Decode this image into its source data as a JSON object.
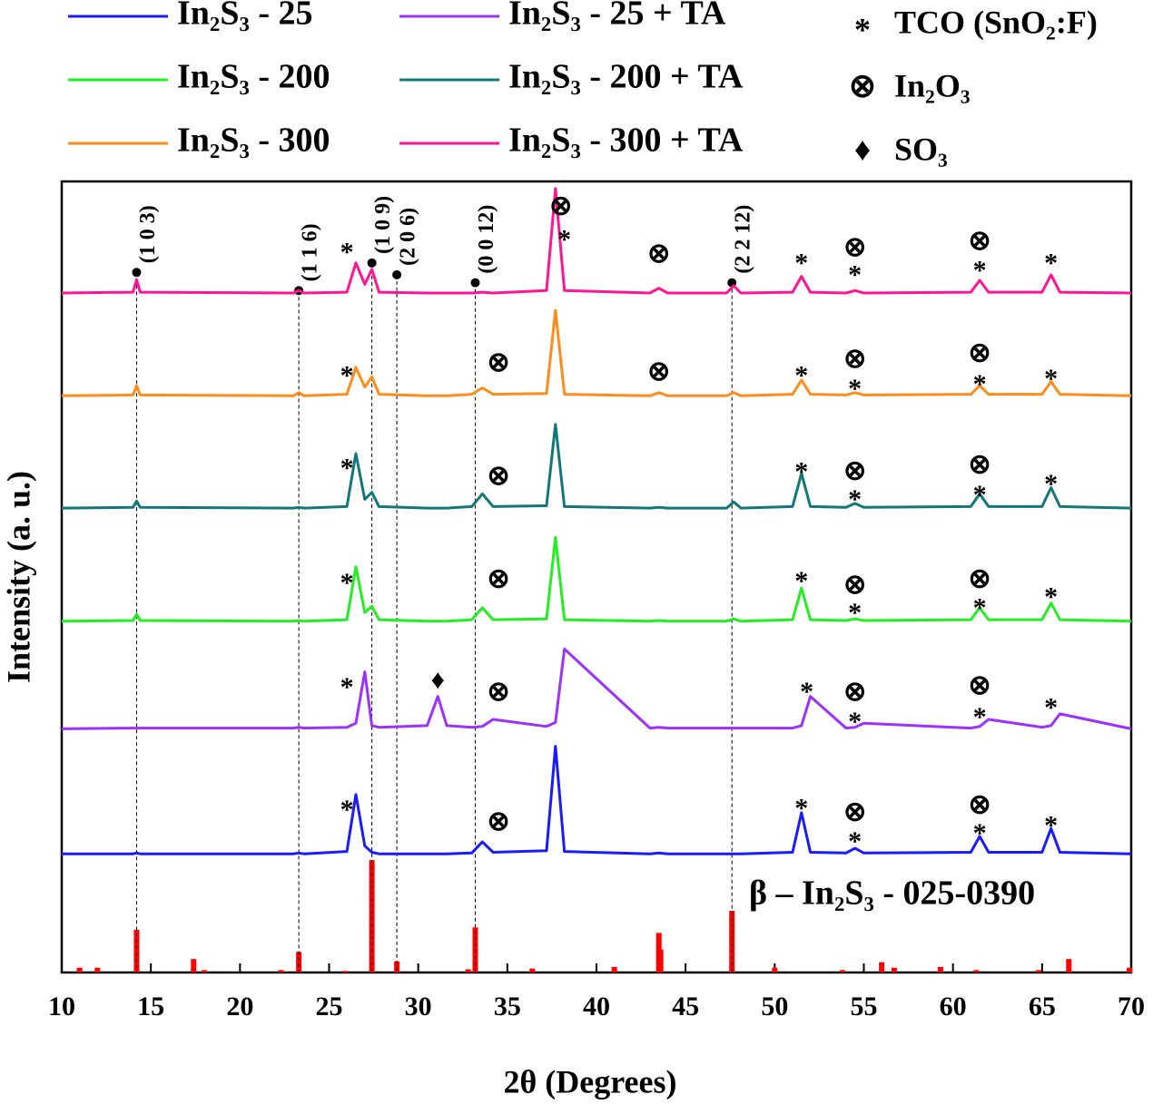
{
  "chart_data": {
    "type": "line",
    "x_label": "2θ (Degrees)",
    "y_label": "Intensity (a. u.)",
    "xlim": [
      10,
      70
    ],
    "ylim": [
      0,
      100
    ],
    "xticks": [
      10,
      15,
      20,
      25,
      30,
      35,
      40,
      45,
      50,
      55,
      60,
      65,
      70
    ],
    "x": [
      10,
      14.0,
      14.2,
      14.4,
      23.0,
      23.3,
      23.6,
      26.0,
      26.5,
      27.0,
      27.4,
      27.8,
      30.5,
      31.1,
      31.6,
      33.0,
      33.6,
      34.2,
      37.2,
      37.7,
      38.2,
      43.0,
      43.5,
      44.0,
      47.3,
      47.7,
      48.1,
      51.0,
      51.5,
      52.0,
      54.0,
      54.5,
      55.0,
      61.0,
      61.5,
      62.0,
      65.0,
      65.5,
      66.0,
      70
    ],
    "series": [
      {
        "name": "In₂S₃ - 25",
        "color": "#1a1aff",
        "values": [
          15.0,
          15.0,
          15.1,
          15.0,
          15.0,
          15.1,
          15.0,
          15.3,
          22.5,
          16.0,
          15.2,
          15.0,
          15.0,
          15.0,
          15.0,
          15.1,
          16.5,
          15.2,
          15.4,
          28.6,
          15.3,
          15.0,
          15.1,
          15.0,
          15.0,
          15.0,
          15.0,
          15.2,
          20.2,
          15.2,
          15.1,
          15.7,
          15.1,
          15.2,
          17.2,
          15.2,
          15.2,
          18.2,
          15.2,
          15.0
        ]
      },
      {
        "name": "In₂S₃ - 200",
        "color": "#22ee22",
        "values": [
          44.4,
          44.5,
          45.3,
          44.5,
          44.4,
          44.5,
          44.4,
          44.6,
          51.3,
          45.5,
          46.3,
          44.6,
          44.4,
          44.4,
          44.4,
          44.6,
          46.1,
          44.6,
          44.7,
          55.0,
          44.6,
          44.4,
          44.5,
          44.4,
          44.4,
          44.7,
          44.4,
          44.6,
          48.6,
          44.6,
          44.5,
          44.7,
          44.5,
          44.6,
          46.1,
          44.6,
          44.6,
          46.7,
          44.6,
          44.4
        ]
      },
      {
        "name": "In₂S₃ - 300",
        "color": "#ff8c1a",
        "values": [
          72.9,
          73.0,
          74.2,
          73.0,
          72.9,
          73.3,
          72.9,
          73.1,
          76.5,
          74.0,
          75.3,
          73.1,
          72.9,
          72.9,
          72.9,
          73.1,
          73.9,
          73.1,
          73.2,
          83.7,
          73.1,
          72.9,
          73.3,
          72.9,
          72.9,
          73.3,
          72.9,
          73.1,
          74.9,
          73.1,
          73.0,
          73.3,
          73.0,
          73.1,
          74.2,
          73.1,
          73.1,
          74.7,
          73.1,
          72.9
        ]
      },
      {
        "name": "In₂S₃ - 25 + TA",
        "color": "#9b30ff",
        "values": [
          30.8,
          30.9,
          30.9,
          30.9,
          30.9,
          31.0,
          30.9,
          31.0,
          31.5,
          38.0,
          31.2,
          31.0,
          31.2,
          34.9,
          31.2,
          31.0,
          31.1,
          32.0,
          31.1,
          31.6,
          40.9,
          30.9,
          31.0,
          30.9,
          30.9,
          30.9,
          30.9,
          30.9,
          31.2,
          34.9,
          30.9,
          31.0,
          31.5,
          30.9,
          31.1,
          32.0,
          31.0,
          31.2,
          32.7,
          30.8
        ]
      },
      {
        "name": "In₂S₃ - 200 + TA",
        "color": "#11777a",
        "values": [
          58.7,
          58.8,
          59.6,
          58.8,
          58.7,
          58.8,
          58.7,
          58.9,
          65.6,
          59.8,
          60.7,
          58.9,
          58.7,
          58.7,
          58.7,
          58.9,
          60.5,
          58.9,
          59.0,
          69.3,
          58.9,
          58.7,
          58.8,
          58.7,
          58.7,
          59.5,
          58.7,
          58.9,
          63.1,
          58.9,
          58.8,
          59.3,
          58.8,
          58.9,
          60.5,
          58.9,
          58.9,
          61.3,
          58.9,
          58.7
        ]
      },
      {
        "name": "In₂S₃ - 300 + TA",
        "color": "#ff1493",
        "values": [
          85.9,
          86.0,
          87.6,
          86.0,
          85.9,
          86.2,
          85.9,
          86.0,
          89.7,
          87.0,
          88.9,
          86.0,
          85.9,
          85.9,
          85.9,
          85.9,
          86.0,
          85.9,
          86.2,
          99.1,
          86.2,
          85.9,
          86.5,
          85.9,
          85.9,
          86.8,
          85.9,
          86.0,
          88.0,
          86.0,
          85.9,
          86.2,
          85.9,
          86.0,
          87.5,
          86.0,
          86.0,
          88.2,
          86.0,
          85.9
        ]
      }
    ],
    "reference": {
      "name": "β – In₂S₃ - 025-0390",
      "color": "#ff0000",
      "x": [
        11.0,
        12.0,
        14.2,
        17.4,
        18.0,
        22.3,
        23.3,
        25.9,
        27.4,
        28.8,
        32.8,
        33.2,
        36.4,
        41.0,
        43.5,
        43.6,
        47.6,
        50.0,
        53.8,
        56.0,
        56.7,
        59.3,
        61.3,
        64.8,
        66.5,
        69.9
      ],
      "values": [
        0.6,
        0.6,
        5.4,
        1.7,
        0.3,
        0.3,
        2.6,
        0.2,
        14.2,
        1.4,
        0.4,
        5.7,
        0.5,
        0.7,
        5.0,
        2.9,
        7.8,
        0.6,
        0.3,
        1.3,
        0.6,
        0.7,
        0.3,
        0.3,
        1.7,
        0.6
      ]
    },
    "reflections": [
      {
        "label": "(1 0 3)",
        "x": 14.2,
        "y": 88.5
      },
      {
        "label": "(1 1 6)",
        "x": 23.3,
        "y": 86.2
      },
      {
        "label": "(1 0 9)",
        "x": 27.4,
        "y": 89.7
      },
      {
        "label": "(2 0 6)",
        "x": 28.8,
        "y": 88.2
      },
      {
        "label": "(0 0 12)",
        "x": 33.2,
        "y": 87.2
      },
      {
        "label": "(2 2 12)",
        "x": 47.6,
        "y": 87.2
      }
    ],
    "marker_legend": [
      {
        "symbol": "*",
        "label": "TCO (SnO₂:F)"
      },
      {
        "symbol": "⊗",
        "label": "In₂O₃"
      },
      {
        "symbol": "♦",
        "label": "SO₃"
      }
    ],
    "annotations": [
      {
        "text": "*",
        "x": 26.0,
        "y": 91.7
      },
      {
        "text": "⊗",
        "x": 38.0,
        "y": 96.6
      },
      {
        "text": "*",
        "x": 38.2,
        "y": 93.3
      },
      {
        "text": "⊗",
        "x": 43.5,
        "y": 90.6
      },
      {
        "text": "*",
        "x": 51.5,
        "y": 90.3
      },
      {
        "text": "⊗",
        "x": 54.5,
        "y": 91.4
      },
      {
        "text": "*",
        "x": 54.5,
        "y": 88.8
      },
      {
        "text": "⊗",
        "x": 61.5,
        "y": 92.2
      },
      {
        "text": "*",
        "x": 61.5,
        "y": 89.4
      },
      {
        "text": "*",
        "x": 65.5,
        "y": 90.3
      },
      {
        "text": "*",
        "x": 26.0,
        "y": 76.1
      },
      {
        "text": "⊗",
        "x": 34.5,
        "y": 76.8
      },
      {
        "text": "⊗",
        "x": 43.5,
        "y": 75.7
      },
      {
        "text": "*",
        "x": 51.5,
        "y": 76.1
      },
      {
        "text": "⊗",
        "x": 54.5,
        "y": 77.3
      },
      {
        "text": "*",
        "x": 54.5,
        "y": 74.4
      },
      {
        "text": "⊗",
        "x": 61.5,
        "y": 78.0
      },
      {
        "text": "*",
        "x": 61.5,
        "y": 75.0
      },
      {
        "text": "*",
        "x": 65.5,
        "y": 75.7
      },
      {
        "text": "*",
        "x": 26.0,
        "y": 64.4
      },
      {
        "text": "⊗",
        "x": 34.5,
        "y": 62.5
      },
      {
        "text": "*",
        "x": 51.5,
        "y": 63.9
      },
      {
        "text": "⊗",
        "x": 54.5,
        "y": 63.1
      },
      {
        "text": "*",
        "x": 54.5,
        "y": 60.4
      },
      {
        "text": "⊗",
        "x": 61.5,
        "y": 63.9
      },
      {
        "text": "*",
        "x": 61.5,
        "y": 61.0
      },
      {
        "text": "*",
        "x": 65.5,
        "y": 62.4
      },
      {
        "text": "*",
        "x": 26.0,
        "y": 49.9
      },
      {
        "text": "⊗",
        "x": 34.5,
        "y": 49.5
      },
      {
        "text": "*",
        "x": 51.5,
        "y": 50.1
      },
      {
        "text": "⊗",
        "x": 54.5,
        "y": 48.7
      },
      {
        "text": "*",
        "x": 54.5,
        "y": 46.1
      },
      {
        "text": "⊗",
        "x": 61.5,
        "y": 49.5
      },
      {
        "text": "*",
        "x": 61.5,
        "y": 46.7
      },
      {
        "text": "*",
        "x": 65.5,
        "y": 48.1
      },
      {
        "text": "*",
        "x": 26.0,
        "y": 36.7
      },
      {
        "text": "♦",
        "x": 31.1,
        "y": 36.7
      },
      {
        "text": "⊗",
        "x": 34.5,
        "y": 35.2
      },
      {
        "text": "*",
        "x": 51.8,
        "y": 36.1
      },
      {
        "text": "⊗",
        "x": 54.5,
        "y": 35.2
      },
      {
        "text": "*",
        "x": 54.5,
        "y": 32.3
      },
      {
        "text": "⊗",
        "x": 61.5,
        "y": 36.0
      },
      {
        "text": "*",
        "x": 61.5,
        "y": 32.9
      },
      {
        "text": "*",
        "x": 65.5,
        "y": 34.1
      },
      {
        "text": "*",
        "x": 26.0,
        "y": 21.2
      },
      {
        "text": "⊗",
        "x": 34.5,
        "y": 18.8
      },
      {
        "text": "*",
        "x": 51.5,
        "y": 21.4
      },
      {
        "text": "⊗",
        "x": 54.5,
        "y": 20.0
      },
      {
        "text": "*",
        "x": 54.5,
        "y": 17.2
      },
      {
        "text": "⊗",
        "x": 61.5,
        "y": 20.9
      },
      {
        "text": "*",
        "x": 61.5,
        "y": 18.2
      },
      {
        "text": "*",
        "x": 65.5,
        "y": 19.2
      }
    ]
  }
}
